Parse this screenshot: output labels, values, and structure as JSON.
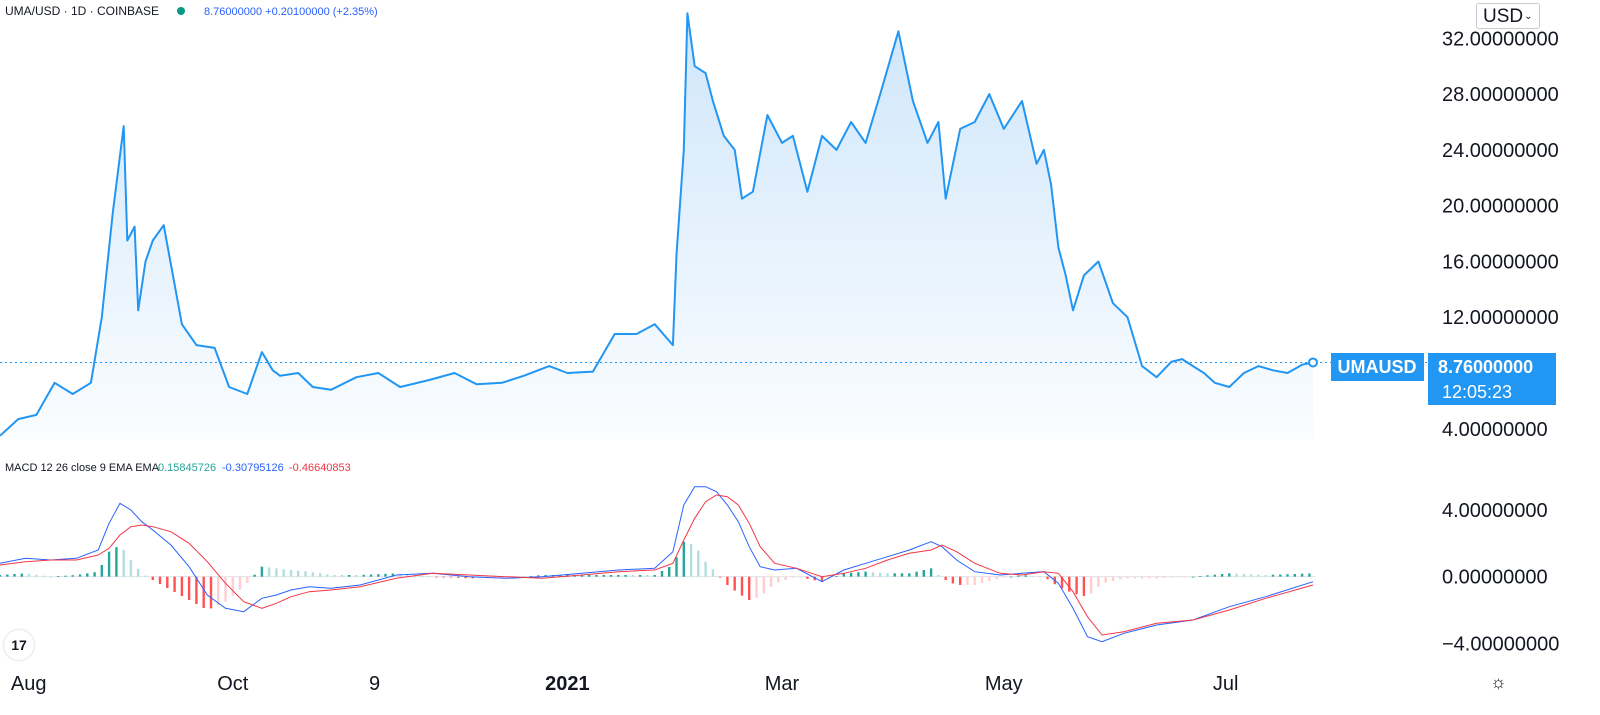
{
  "header": {
    "symbol": "UMA/USD · 1D · COINBASE",
    "status_dot_color": "#089981",
    "price_change": "8.76000000 +0.20100000 (+2.35%)",
    "price_change_color": "#2962ff"
  },
  "currency_button": {
    "label": "USD",
    "chevron": "⌄"
  },
  "price_tag": {
    "symbol": "UMAUSD",
    "price": "8.76000000",
    "countdown": "12:05:23",
    "color": "#2196f3"
  },
  "macd_legend": {
    "label": "MACD 12 26 close 9 EMA EMA",
    "histogram": "0.15845726",
    "macd": "-0.30795126",
    "signal": "-0.46640853",
    "histogram_color": "#26a69a",
    "macd_color": "#2962ff",
    "signal_color": "#f23645"
  },
  "logo_text": "17",
  "settings_icon": "gear-icon",
  "chart_data": [
    {
      "type": "area",
      "name": "UMA/USD price",
      "line_color": "#2196f3",
      "fill_color": "#d6e9fb",
      "x_ticks": [
        "Aug",
        "Oct",
        "9",
        "2021",
        "Mar",
        "May",
        "Jul"
      ],
      "y_ticks": [
        "32.00000000",
        "28.00000000",
        "24.00000000",
        "20.00000000",
        "16.00000000",
        "12.00000000",
        "8.76000000",
        "4.00000000"
      ],
      "ylim": [
        3.2,
        34.6
      ],
      "last_value": 8.76,
      "x": [
        "2020-07-29",
        "2020-08-03",
        "2020-08-08",
        "2020-08-13",
        "2020-08-18",
        "2020-08-23",
        "2020-08-26",
        "2020-08-29",
        "2020-09-01",
        "2020-09-02",
        "2020-09-04",
        "2020-09-05",
        "2020-09-07",
        "2020-09-09",
        "2020-09-12",
        "2020-09-17",
        "2020-09-21",
        "2020-09-26",
        "2020-09-30",
        "2020-10-05",
        "2020-10-09",
        "2020-10-12",
        "2020-10-14",
        "2020-10-19",
        "2020-10-23",
        "2020-10-28",
        "2020-11-04",
        "2020-11-10",
        "2020-11-16",
        "2020-11-24",
        "2020-12-01",
        "2020-12-07",
        "2020-12-14",
        "2020-12-20",
        "2020-12-27",
        "2021-01-01",
        "2021-01-08",
        "2021-01-14",
        "2021-01-20",
        "2021-01-25",
        "2021-01-30",
        "2021-01-31",
        "2021-02-02",
        "2021-02-03",
        "2021-02-05",
        "2021-02-08",
        "2021-02-10",
        "2021-02-13",
        "2021-02-16",
        "2021-02-18",
        "2021-02-21",
        "2021-02-25",
        "2021-03-01",
        "2021-03-04",
        "2021-03-08",
        "2021-03-12",
        "2021-03-16",
        "2021-03-20",
        "2021-03-24",
        "2021-03-28",
        "2021-04-02",
        "2021-04-06",
        "2021-04-10",
        "2021-04-13",
        "2021-04-15",
        "2021-04-19",
        "2021-04-23",
        "2021-04-27",
        "2021-05-01",
        "2021-05-06",
        "2021-05-10",
        "2021-05-12",
        "2021-05-14",
        "2021-05-16",
        "2021-05-18",
        "2021-05-20",
        "2021-05-23",
        "2021-05-27",
        "2021-05-31",
        "2021-06-04",
        "2021-06-08",
        "2021-06-12",
        "2021-06-16",
        "2021-06-19",
        "2021-06-22",
        "2021-06-25",
        "2021-06-28",
        "2021-07-02",
        "2021-07-06",
        "2021-07-10",
        "2021-07-14",
        "2021-07-18",
        "2021-07-22",
        "2021-07-25"
      ],
      "y": [
        3.5,
        4.7,
        5.0,
        7.3,
        6.5,
        7.3,
        12.0,
        19.5,
        25.7,
        17.5,
        18.5,
        12.5,
        16.0,
        17.5,
        18.6,
        11.5,
        10.0,
        9.8,
        7.0,
        6.5,
        9.5,
        8.2,
        7.8,
        8.0,
        7.0,
        6.8,
        7.7,
        8.0,
        7.0,
        7.5,
        8.0,
        7.2,
        7.3,
        7.8,
        8.5,
        8.0,
        8.1,
        10.8,
        10.8,
        11.5,
        10.0,
        16.5,
        24.0,
        33.8,
        30.0,
        29.5,
        27.5,
        25.0,
        24.0,
        20.5,
        21.0,
        26.5,
        24.5,
        25.0,
        21.0,
        25.0,
        24.0,
        26.0,
        24.5,
        28.0,
        32.5,
        27.5,
        24.5,
        26.0,
        20.5,
        25.5,
        26.0,
        28.0,
        25.5,
        27.5,
        23.0,
        24.0,
        21.5,
        17.0,
        15.0,
        12.5,
        15.0,
        16.0,
        13.0,
        12.0,
        8.5,
        7.7,
        8.8,
        9.0,
        8.5,
        8.0,
        7.3,
        7.0,
        8.0,
        8.5,
        8.2,
        8.0,
        8.6,
        8.76
      ]
    },
    {
      "type": "bar",
      "name": "MACD 12 26 close 9 EMA EMA",
      "y_ticks": [
        "4.00000000",
        "0.00000000",
        "−4.00000000"
      ],
      "ylim": [
        -5.0,
        6.4
      ],
      "zero_line": true,
      "x": [
        "2020-07-29",
        "2020-08-05",
        "2020-08-12",
        "2020-08-19",
        "2020-08-25",
        "2020-08-28",
        "2020-08-31",
        "2020-09-03",
        "2020-09-06",
        "2020-09-09",
        "2020-09-14",
        "2020-09-19",
        "2020-09-24",
        "2020-09-29",
        "2020-10-04",
        "2020-10-09",
        "2020-10-13",
        "2020-10-17",
        "2020-10-22",
        "2020-10-28",
        "2020-11-05",
        "2020-11-15",
        "2020-11-25",
        "2020-12-05",
        "2020-12-15",
        "2020-12-25",
        "2021-01-05",
        "2021-01-15",
        "2021-01-25",
        "2021-01-30",
        "2021-02-02",
        "2021-02-05",
        "2021-02-08",
        "2021-02-11",
        "2021-02-14",
        "2021-02-17",
        "2021-02-20",
        "2021-02-23",
        "2021-02-27",
        "2021-03-05",
        "2021-03-12",
        "2021-03-18",
        "2021-03-24",
        "2021-03-30",
        "2021-04-05",
        "2021-04-11",
        "2021-04-14",
        "2021-04-18",
        "2021-04-23",
        "2021-04-30",
        "2021-05-06",
        "2021-05-12",
        "2021-05-16",
        "2021-05-20",
        "2021-05-24",
        "2021-05-28",
        "2021-06-03",
        "2021-06-12",
        "2021-06-22",
        "2021-07-02",
        "2021-07-12",
        "2021-07-25"
      ],
      "macd": [
        0.8,
        1.1,
        1.0,
        1.1,
        1.6,
        3.2,
        4.4,
        4.0,
        3.3,
        2.8,
        1.9,
        0.6,
        -1.1,
        -1.9,
        -2.1,
        -1.3,
        -1.1,
        -0.8,
        -0.6,
        -0.7,
        -0.5,
        0.1,
        0.2,
        0.0,
        -0.1,
        0.0,
        0.2,
        0.4,
        0.5,
        1.5,
        4.3,
        5.4,
        5.4,
        5.1,
        4.3,
        3.3,
        1.8,
        0.6,
        0.4,
        0.5,
        -0.3,
        0.4,
        0.8,
        1.2,
        1.6,
        2.1,
        1.8,
        1.0,
        0.3,
        0.1,
        0.2,
        0.3,
        -0.4,
        -1.9,
        -3.6,
        -3.9,
        -3.4,
        -2.9,
        -2.6,
        -1.8,
        -1.2,
        -0.3
      ],
      "signal": [
        0.7,
        0.9,
        1.0,
        1.0,
        1.3,
        1.7,
        2.5,
        3.0,
        3.1,
        3.0,
        2.7,
        2.0,
        0.9,
        -0.4,
        -1.5,
        -1.9,
        -1.6,
        -1.2,
        -0.9,
        -0.8,
        -0.6,
        -0.1,
        0.2,
        0.1,
        0.0,
        -0.1,
        0.1,
        0.3,
        0.4,
        0.8,
        2.2,
        3.5,
        4.5,
        4.9,
        4.8,
        4.3,
        3.2,
        1.8,
        0.8,
        0.5,
        0.0,
        0.2,
        0.5,
        1.0,
        1.4,
        1.6,
        1.9,
        1.5,
        0.8,
        0.2,
        0.1,
        0.3,
        0.2,
        -0.9,
        -2.4,
        -3.5,
        -3.3,
        -2.8,
        -2.6,
        -2.0,
        -1.3,
        -0.5
      ],
      "histogram_colors": {
        "up_strong": "#26a69a",
        "up_weak": "#b2dfdb",
        "down_strong": "#ff5252",
        "down_weak": "#ffcdd2"
      }
    }
  ]
}
